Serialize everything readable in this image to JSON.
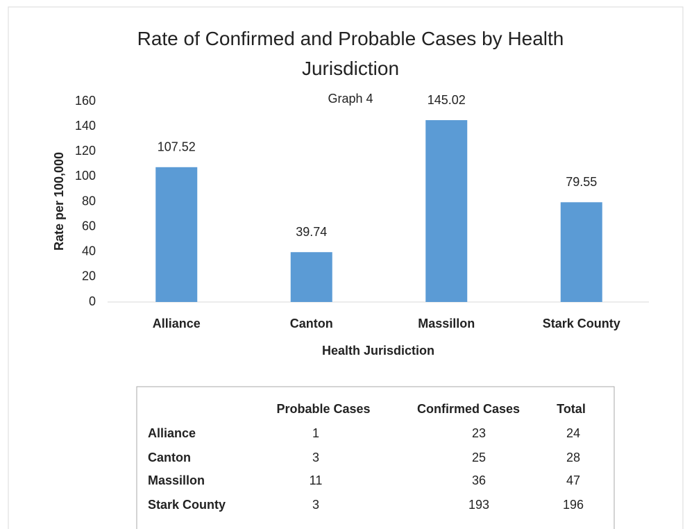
{
  "chart_data": {
    "type": "bar",
    "title": "Rate of Confirmed and Probable Cases by Health Jurisdiction",
    "subtitle": "Graph 4",
    "x_label": "Health Jurisdiction",
    "y_label": "Rate per 100,000",
    "categories": [
      "Alliance",
      "Canton",
      "Massillon",
      "Stark County"
    ],
    "values": [
      107.52,
      39.74,
      145.02,
      79.55
    ],
    "color": "#5b9bd5",
    "ylim": [
      0,
      160
    ],
    "yticks": [
      0,
      20,
      40,
      60,
      80,
      100,
      120,
      140,
      160
    ],
    "grid": false
  },
  "table": {
    "header": [
      "Probable Cases",
      "Confirmed Cases",
      "Total"
    ],
    "rows": [
      [
        "Alliance",
        1,
        23,
        24
      ],
      [
        "Canton",
        3,
        25,
        28
      ],
      [
        "Massillon",
        11,
        36,
        47
      ],
      [
        "Stark County",
        3,
        193,
        196
      ]
    ]
  }
}
